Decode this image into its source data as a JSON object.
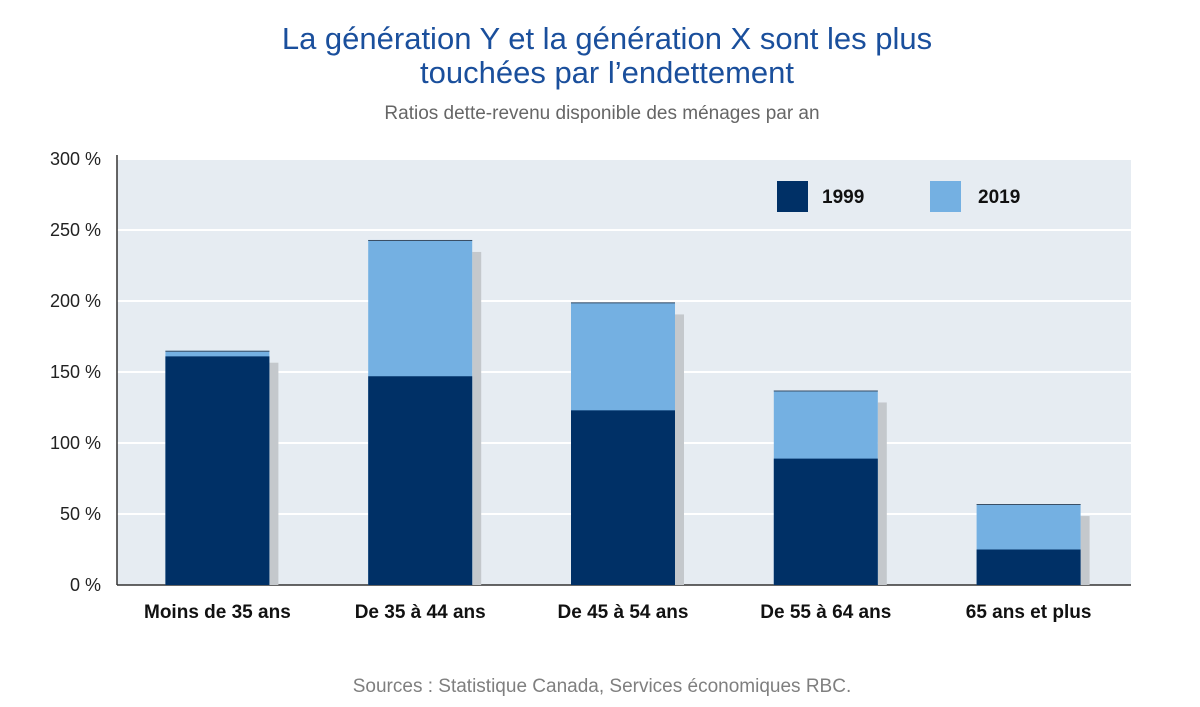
{
  "title_line1": "La génération Y et la génération X sont les plus",
  "title_line2": "touchées par l’endettement",
  "subtitle": "Ratios dette-revenu disponible des ménages par an",
  "source": "Sources : Statistique Canada, Services économiques RBC.",
  "colors": {
    "series_1999": "#003066",
    "series_2019": "#74b0e2",
    "plot_background": "#e6ecf2",
    "shadow": "#c4c8cc",
    "title": "#1a4f9c"
  },
  "chart_data": {
    "type": "bar",
    "stacked_overlay": true,
    "title": "La génération Y et la génération X sont les plus touchées par l’endettement",
    "subtitle": "Ratios dette-revenu disponible des ménages par an",
    "xlabel": "",
    "ylabel": "",
    "categories": [
      "Moins de 35 ans",
      "De 35 à 44 ans",
      "De 45 à 54 ans",
      "De 55 à 64 ans",
      "65 ans et plus"
    ],
    "series": [
      {
        "name": "1999",
        "values": [
          161,
          147,
          123,
          89,
          25
        ]
      },
      {
        "name": "2019",
        "values": [
          165,
          243,
          199,
          137,
          57
        ]
      }
    ],
    "ylim": [
      0,
      300
    ],
    "yticks": [
      0,
      50,
      100,
      150,
      200,
      250,
      300
    ],
    "ytick_labels": [
      "0 %",
      "50 %",
      "100 %",
      "150 %",
      "200 %",
      "250 %",
      "300 %"
    ],
    "grid": true,
    "legend_position": "top-right"
  }
}
